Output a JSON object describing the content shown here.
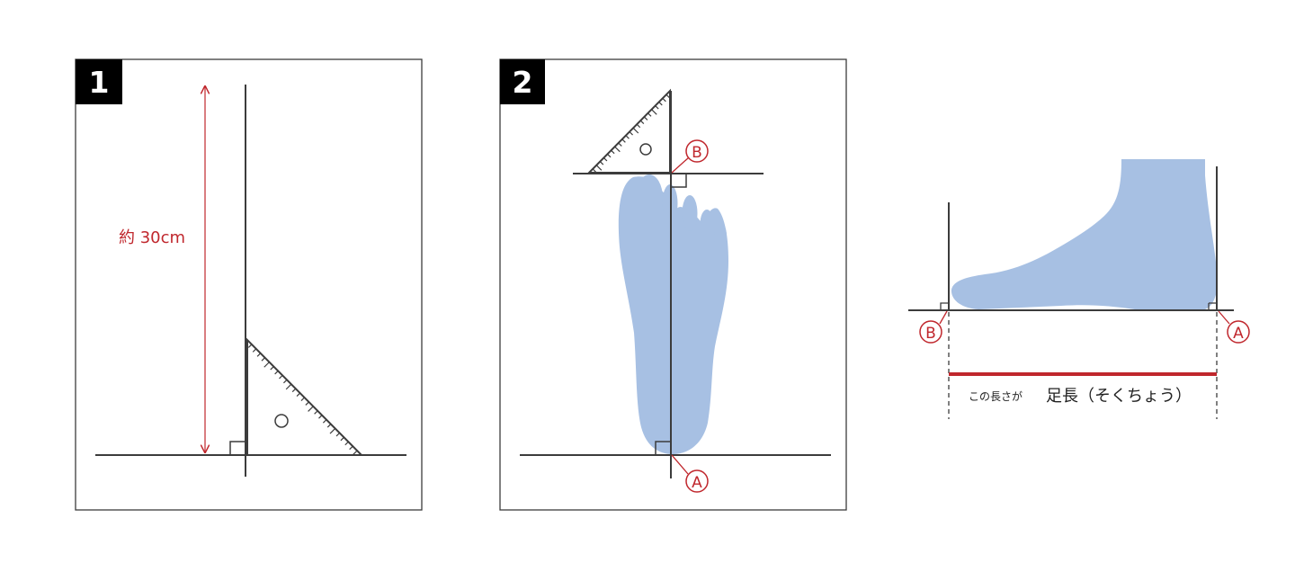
{
  "panel1": {
    "number": "1",
    "measure_label": "約 30cm"
  },
  "panel2": {
    "number": "2",
    "point_a": "A",
    "point_b": "B"
  },
  "panel3": {
    "point_a": "A",
    "point_b": "B",
    "caption_small": "この長さが",
    "caption_main": "足長（そくちょう）"
  },
  "colors": {
    "line": "#3c3c3c",
    "accent": "#c0272d",
    "foot": "#a7c0e3",
    "badge": "#000000"
  },
  "icons": [
    "set-square-ruler-icon",
    "foot-sole-icon",
    "foot-side-icon",
    "right-angle-icon"
  ]
}
